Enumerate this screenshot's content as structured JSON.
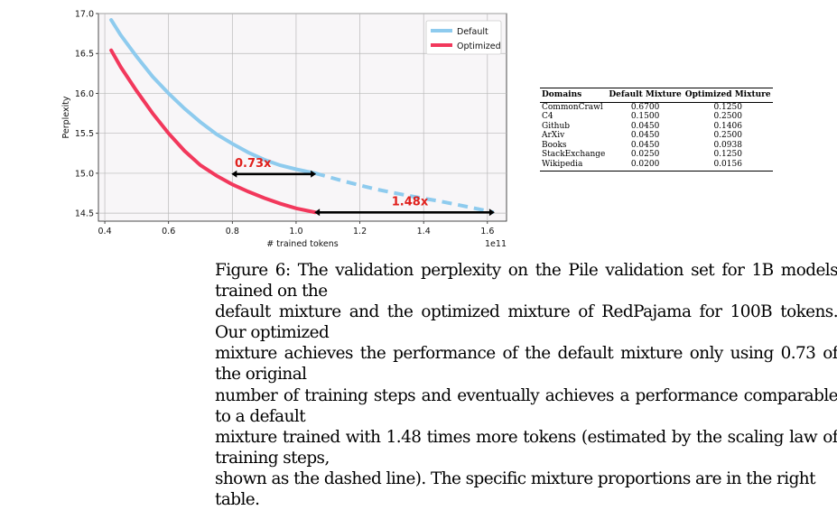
{
  "chart_data": {
    "type": "line",
    "xlabel": "# trained tokens",
    "ylabel": "Perplexity",
    "x_offset_label": "1e11",
    "xlim": [
      0.38,
      1.66
    ],
    "ylim": [
      14.4,
      17.0
    ],
    "x_ticks": [
      "0.4",
      "0.6",
      "0.8",
      "1.0",
      "1.2",
      "1.4",
      "1.6"
    ],
    "y_ticks": [
      "14.5",
      "15.0",
      "15.5",
      "16.0",
      "16.5",
      "17.0"
    ],
    "grid": true,
    "legend_position": "top-right",
    "series": [
      {
        "name": "Default",
        "color": "#8ecbee",
        "x": [
          0.42,
          0.45,
          0.5,
          0.55,
          0.6,
          0.65,
          0.7,
          0.75,
          0.8,
          0.85,
          0.9,
          0.95,
          1.0,
          1.06
        ],
        "y": [
          16.92,
          16.73,
          16.46,
          16.21,
          16.0,
          15.81,
          15.64,
          15.49,
          15.37,
          15.26,
          15.17,
          15.1,
          15.05,
          15.0
        ]
      },
      {
        "name": "Optimized",
        "color": "#f2385c",
        "x": [
          0.42,
          0.45,
          0.5,
          0.55,
          0.6,
          0.65,
          0.7,
          0.75,
          0.8,
          0.85,
          0.9,
          0.95,
          1.0,
          1.06
        ],
        "y": [
          16.54,
          16.33,
          16.03,
          15.75,
          15.5,
          15.28,
          15.1,
          14.97,
          14.86,
          14.77,
          14.69,
          14.62,
          14.56,
          14.51
        ]
      }
    ],
    "extrapolation": {
      "series": "Default",
      "style": "dashed",
      "x": [
        1.06,
        1.15,
        1.25,
        1.35,
        1.45,
        1.55,
        1.62
      ],
      "y": [
        15.0,
        14.9,
        14.8,
        14.72,
        14.65,
        14.57,
        14.51
      ]
    },
    "annotations": [
      {
        "label": "0.73x",
        "x_start": 0.8,
        "x_end": 1.06,
        "y": 14.99,
        "color": "#e0201c"
      },
      {
        "label": "1.48x",
        "x_start": 1.06,
        "x_end": 1.62,
        "y": 14.51,
        "color": "#e0201c"
      }
    ]
  },
  "table": {
    "headers": [
      "Domains",
      "Default Mixture",
      "Optimized Mixture"
    ],
    "rows": [
      [
        "CommonCrawl",
        "0.6700",
        "0.1250"
      ],
      [
        "C4",
        "0.1500",
        "0.2500"
      ],
      [
        "Github",
        "0.0450",
        "0.1406"
      ],
      [
        "ArXiv",
        "0.0450",
        "0.2500"
      ],
      [
        "Books",
        "0.0450",
        "0.0938"
      ],
      [
        "StackExchange",
        "0.0250",
        "0.1250"
      ],
      [
        "Wikipedia",
        "0.0200",
        "0.0156"
      ]
    ]
  },
  "caption": [
    "Figure 6: The validation perplexity on the Pile validation set for 1B models trained on the",
    "default mixture and the optimized mixture of RedPajama for 100B tokens. Our optimized",
    "mixture achieves the performance of the default mixture only using 0.73 of the original",
    "number of training steps and eventually achieves a performance comparable to a default",
    "mixture trained with 1.48 times more tokens (estimated by the scaling law of training steps,",
    "shown as the dashed line). The specific mixture proportions are in the right table."
  ]
}
